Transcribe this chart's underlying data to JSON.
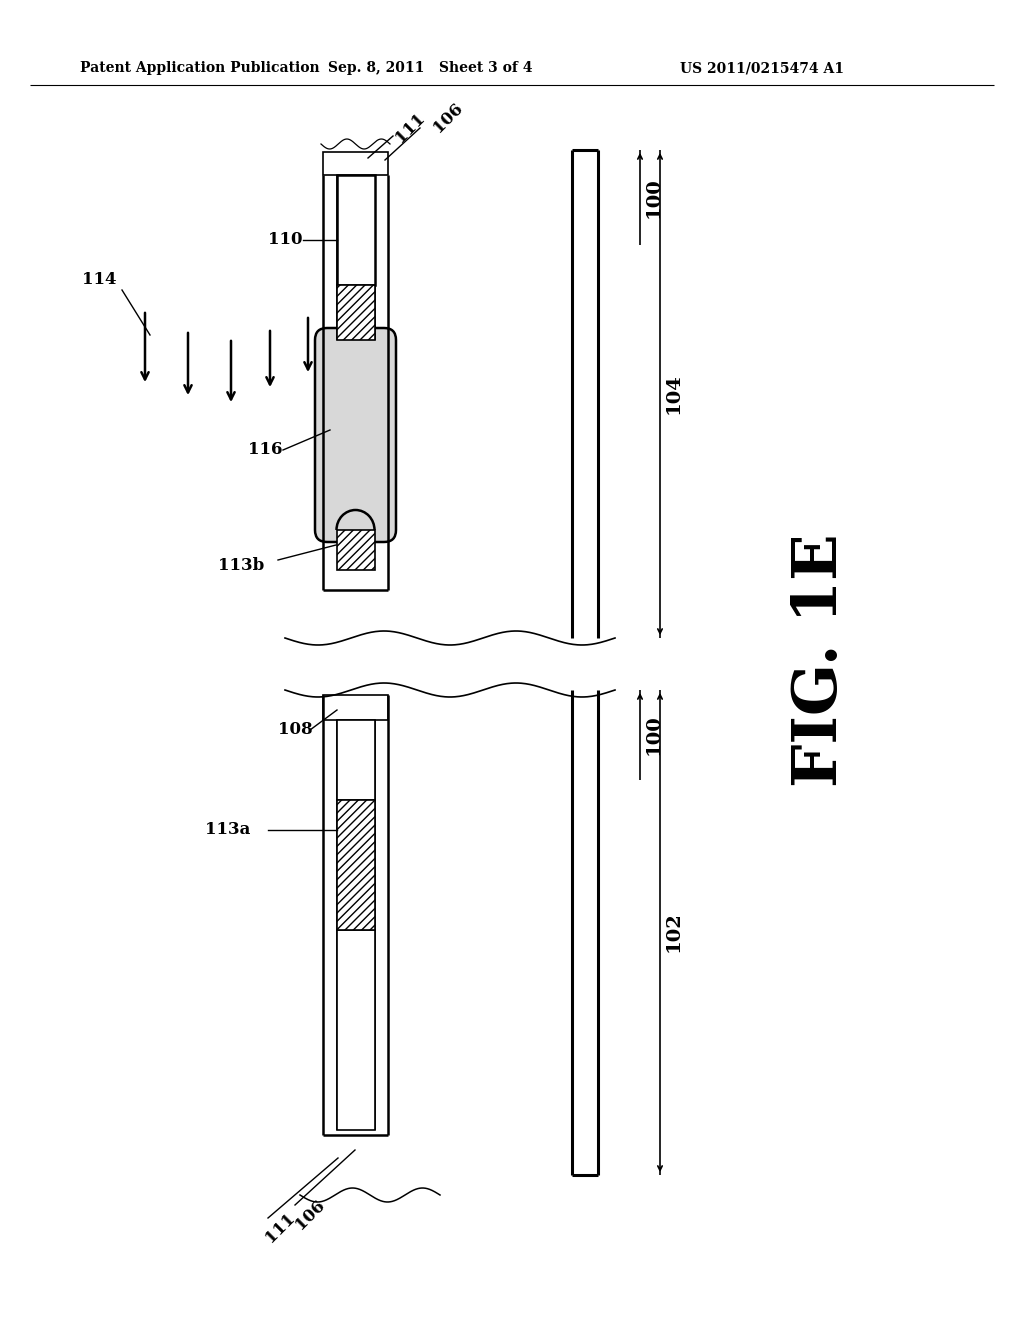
{
  "bg_color": "#ffffff",
  "header_left": "Patent Application Publication",
  "header_mid": "Sep. 8, 2011   Sheet 3 of 4",
  "header_right": "US 2011/0215474 A1",
  "fig_label": "FIG. 1E"
}
